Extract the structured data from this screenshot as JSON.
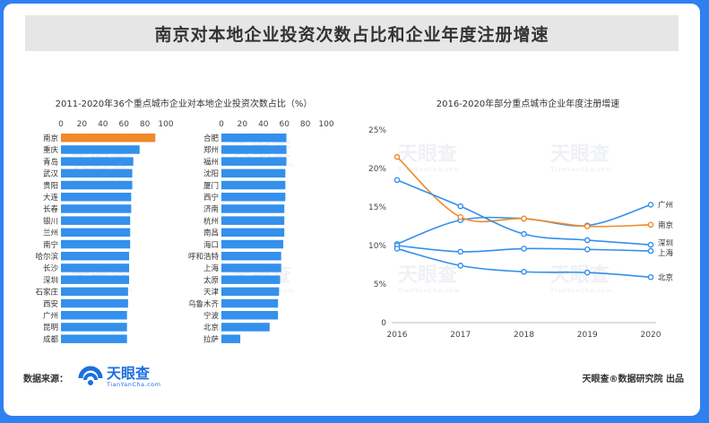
{
  "header": {
    "title": "南京对本地企业投资次数占比和企业年度注册增速"
  },
  "footer": {
    "source_label": "数据来源：",
    "logo_cn": "天眼查",
    "logo_en": "TianYanCha.com",
    "publisher": "天眼查®数据研究院 出品"
  },
  "watermark": {
    "cn": "天眼查",
    "en": "TianYanCha.com"
  },
  "colors": {
    "blue": "#3390ec",
    "orange": "#f08a2a",
    "frame": "#2f80f1"
  },
  "chart_data": [
    {
      "type": "bar",
      "orientation": "horizontal",
      "title": "2011-2020年36个重点城市企业对本地企业投资次数占比（%）",
      "xlim": [
        0,
        100
      ],
      "ticks": [
        0,
        20,
        40,
        60,
        80,
        100
      ],
      "highlight": "南京",
      "panels": [
        {
          "categories": [
            "南京",
            "重庆",
            "青岛",
            "武汉",
            "贵阳",
            "大连",
            "长春",
            "银川",
            "兰州",
            "南宁",
            "哈尔滨",
            "长沙",
            "深圳",
            "石家庄",
            "西安",
            "广州",
            "昆明",
            "成都"
          ],
          "values": [
            90,
            75,
            69,
            68,
            68,
            67,
            67,
            66,
            66,
            66,
            65,
            65,
            65,
            64,
            64,
            63,
            63,
            63
          ]
        },
        {
          "categories": [
            "合肥",
            "郑州",
            "福州",
            "沈阳",
            "厦门",
            "西宁",
            "济南",
            "杭州",
            "南昌",
            "海口",
            "呼和浩特",
            "上海",
            "太原",
            "天津",
            "乌鲁木齐",
            "宁波",
            "北京",
            "拉萨"
          ],
          "values": [
            62,
            62,
            62,
            61,
            61,
            61,
            60,
            60,
            60,
            59,
            57,
            57,
            56,
            55,
            54,
            54,
            46,
            18
          ]
        }
      ]
    },
    {
      "type": "line",
      "title": "2016-2020年部分重点城市企业年度注册增速",
      "x": [
        2016,
        2017,
        2018,
        2019,
        2020
      ],
      "ylim": [
        0,
        25
      ],
      "yticks": [
        "0",
        "5%",
        "10%",
        "15%",
        "20%",
        "25%"
      ],
      "series": [
        {
          "name": "广州",
          "values": [
            10.2,
            13.3,
            13.5,
            12.6,
            15.3
          ],
          "color": "#3390ec"
        },
        {
          "name": "南京",
          "values": [
            21.5,
            13.7,
            13.5,
            12.5,
            12.7
          ],
          "color": "#f08a2a"
        },
        {
          "name": "深圳",
          "values": [
            18.5,
            15.1,
            11.5,
            10.7,
            10.1
          ],
          "color": "#3390ec"
        },
        {
          "name": "上海",
          "values": [
            10.0,
            9.2,
            9.6,
            9.5,
            9.3
          ],
          "color": "#3390ec"
        },
        {
          "name": "北京",
          "values": [
            9.6,
            7.4,
            6.6,
            6.5,
            5.9
          ],
          "color": "#3390ec"
        }
      ]
    }
  ]
}
